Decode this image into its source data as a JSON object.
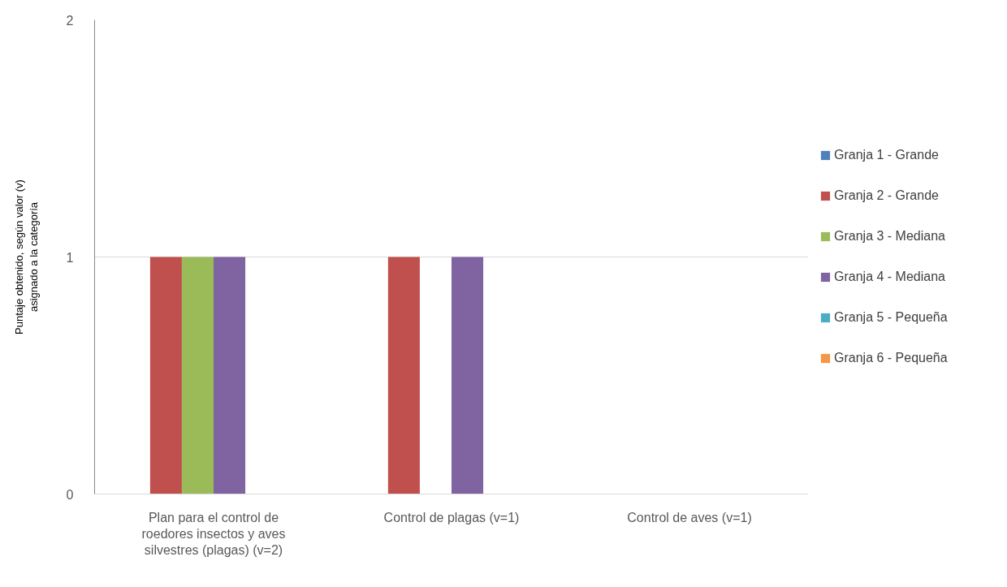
{
  "chart_data": {
    "type": "bar",
    "ylabel": "Puntaje obtenido, según valor (v) asignado a la categoría",
    "categories": [
      "Plan para el control de roedores insectos y aves silvestres (plagas) (v=2)",
      "Control de plagas (v=1)",
      "Control de aves (v=1)"
    ],
    "series": [
      {
        "name": "Granja 1 - Grande",
        "color": "#4f81bd",
        "values": [
          0,
          0,
          0
        ]
      },
      {
        "name": "Granja 2 - Grande",
        "color": "#c0504d",
        "values": [
          1,
          1,
          0
        ]
      },
      {
        "name": "Granja 3 - Mediana",
        "color": "#9bbb59",
        "values": [
          1,
          0,
          0
        ]
      },
      {
        "name": "Granja 4 - Mediana",
        "color": "#8064a2",
        "values": [
          1,
          1,
          0
        ]
      },
      {
        "name": "Granja 5 - Pequeña",
        "color": "#4bacc6",
        "values": [
          0,
          0,
          0
        ]
      },
      {
        "name": "Granja 6 - Pequeña",
        "color": "#f79646",
        "values": [
          0,
          0,
          0
        ]
      }
    ],
    "ylim": [
      0,
      2
    ],
    "yticks": [
      0,
      1,
      2
    ],
    "grid": "y",
    "legend": "right"
  }
}
